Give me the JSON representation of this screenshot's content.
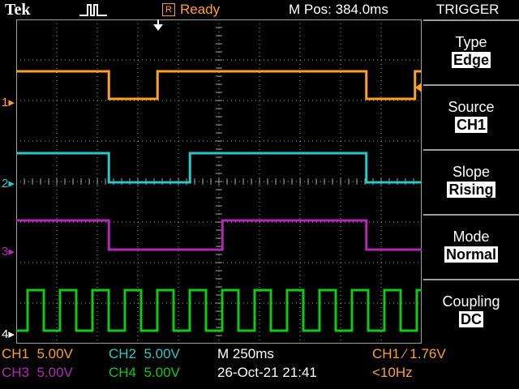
{
  "header": {
    "brand": "Tek",
    "run_state": "Ready",
    "run_state_icon": "R",
    "horizontal_position": "M Pos: 384.0ms",
    "menu_title": "TRIGGER"
  },
  "colors": {
    "ch1": "#ffa028",
    "ch2": "#28c8c8",
    "ch3": "#b428b4",
    "ch4": "#14c814",
    "grid": "#a0a0a0",
    "menu_separator": "#9c9c9c"
  },
  "waveforms": {
    "ch1": {
      "high_fraction_sequence": [
        [
          0,
          1
        ],
        [
          0.2285,
          0
        ],
        [
          0.3485,
          1
        ],
        [
          0.8635,
          0
        ],
        [
          0.9835,
          1
        ]
      ]
    },
    "ch2": {
      "high_fraction_sequence": [
        [
          0,
          1
        ],
        [
          0.2285,
          0
        ],
        [
          0.4285,
          1
        ],
        [
          0.8635,
          0
        ]
      ]
    },
    "ch3": {
      "high_fraction_sequence": [
        [
          0,
          1
        ],
        [
          0.2285,
          0
        ],
        [
          0.5085,
          1
        ],
        [
          0.8635,
          0
        ]
      ]
    },
    "ch4": {
      "type": "square",
      "period_divs": 0.8
    }
  },
  "trigger_menu": [
    {
      "label": "Type",
      "value": "Edge"
    },
    {
      "label": "Source",
      "value": "CH1"
    },
    {
      "label": "Slope",
      "value": "Rising"
    },
    {
      "label": "Mode",
      "value": "Normal"
    },
    {
      "label": "Coupling",
      "value": "DC"
    }
  ],
  "channel_markers": {
    "ch1": "1",
    "ch2": "2",
    "ch3": "3",
    "ch4": "4"
  },
  "status": {
    "ch1_scale": {
      "name": "CH1",
      "value": "5.00V"
    },
    "ch2_scale": {
      "name": "CH2",
      "value": "5.00V"
    },
    "ch3_scale": {
      "name": "CH3",
      "value": "5.00V"
    },
    "ch4_scale": {
      "name": "CH4",
      "value": "5.00V"
    },
    "timebase": "M 250ms",
    "datetime": "26-Oct-21 21:41",
    "trigger_readout": "CH1 ∕ 1.76V",
    "trigger_frequency": "<10Hz"
  }
}
